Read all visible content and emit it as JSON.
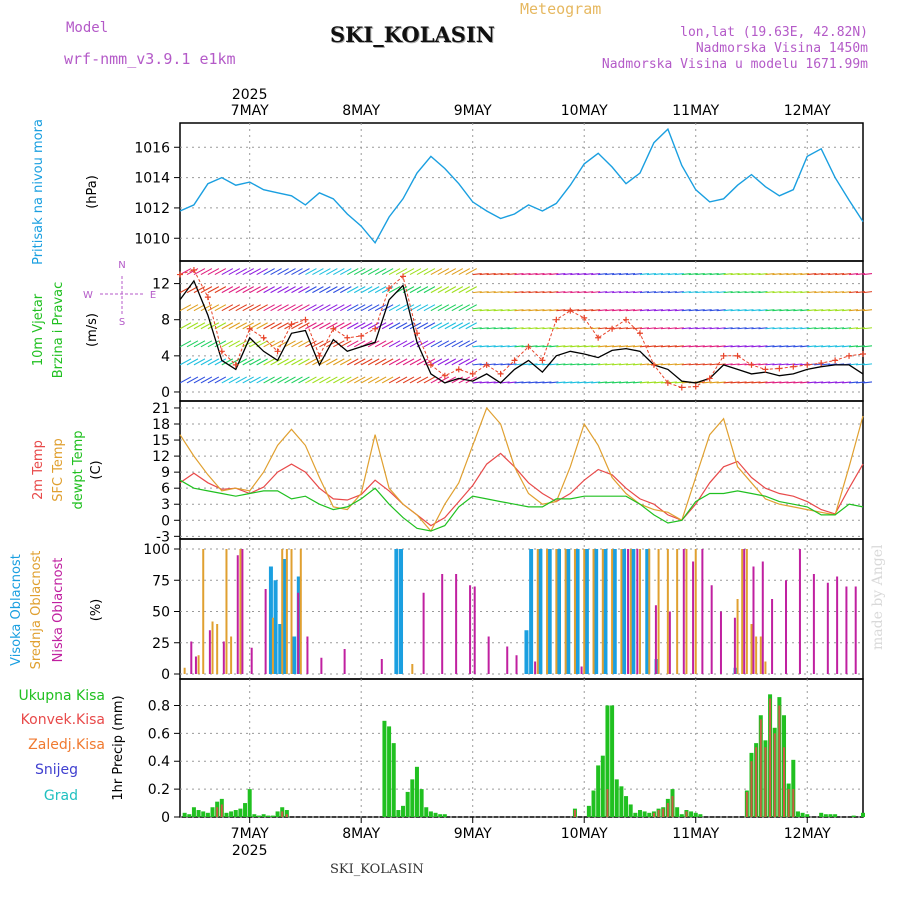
{
  "header": {
    "model_label": "Model",
    "model_name": "wrf-nmm_v3.9.1 e1km",
    "chart_kind": "Meteogram",
    "station": "SKI_KOLASIN",
    "coords": "lon,lat (19.63E, 42.82N)",
    "altitude": "Nadmorska Visina 1450m",
    "model_altitude": "Nadmorska Visina u modelu 1671.99m"
  },
  "footer": {
    "station": "SKI_KOLASIN",
    "signature": "made by Angel"
  },
  "time_axis": {
    "year": "2025",
    "day_labels": [
      "7MAY",
      "8MAY",
      "9MAY",
      "10MAY",
      "11MAY",
      "12MAY"
    ],
    "hours_start_offset": -15,
    "hours_end_offset": 132
  },
  "colors": {
    "pressure": "#1a9fe0",
    "wind_speed": "#000000",
    "wind_gust": "#e8442a",
    "temp_2m": "#e84a4a",
    "temp_sfc": "#e0a030",
    "dewpoint": "#20c020",
    "cloud_high": "#1a9fe0",
    "cloud_mid": "#e0a030",
    "cloud_low": "#c020a0",
    "precip_total": "#20c020",
    "precip_conv": "#e84a4a",
    "grid": "#9a9a9a"
  },
  "chart_data": [
    {
      "type": "line",
      "panel": "pressure",
      "ylabel": "Pritisak na nivou mora",
      "unit_label": "(hPa)",
      "ylim": [
        1008.5,
        1017.6
      ],
      "yticks": [
        1010,
        1012,
        1014,
        1016
      ],
      "x": [
        -15,
        -12,
        -9,
        -6,
        -3,
        0,
        3,
        6,
        9,
        12,
        15,
        18,
        21,
        24,
        27,
        30,
        33,
        36,
        39,
        42,
        45,
        48,
        51,
        54,
        57,
        60,
        63,
        66,
        69,
        72,
        75,
        78,
        81,
        84,
        87,
        90,
        93,
        96,
        99,
        102,
        105,
        108,
        111,
        114,
        117,
        120,
        123,
        126,
        129,
        132
      ],
      "series": [
        {
          "name": "Pritisak na nivou mora",
          "values": [
            1011.8,
            1012.2,
            1013.6,
            1014.0,
            1013.5,
            1013.7,
            1013.2,
            1013.0,
            1012.8,
            1012.2,
            1013.0,
            1012.6,
            1011.6,
            1010.8,
            1009.7,
            1011.4,
            1012.6,
            1014.3,
            1015.4,
            1014.6,
            1013.6,
            1012.4,
            1011.8,
            1011.3,
            1011.6,
            1012.2,
            1011.8,
            1012.3,
            1013.5,
            1014.9,
            1015.6,
            1014.7,
            1013.6,
            1014.3,
            1016.3,
            1017.2,
            1014.8,
            1013.2,
            1012.4,
            1012.6,
            1013.5,
            1014.2,
            1013.4,
            1012.8,
            1013.2,
            1015.4,
            1015.9,
            1014.0,
            1012.5,
            1011.1
          ]
        }
      ]
    },
    {
      "type": "line",
      "panel": "wind",
      "ylabel": "10m Vjetar Brzina i Pravac",
      "unit_label": "(m/s)",
      "compass": [
        "N",
        "E",
        "S",
        "W"
      ],
      "ylim": [
        -1,
        14.5
      ],
      "yticks": [
        0,
        4,
        8,
        12
      ],
      "x": [
        -15,
        -12,
        -9,
        -6,
        -3,
        0,
        3,
        6,
        9,
        12,
        15,
        18,
        21,
        24,
        27,
        30,
        33,
        36,
        39,
        42,
        45,
        48,
        51,
        54,
        57,
        60,
        63,
        66,
        69,
        72,
        75,
        78,
        81,
        84,
        87,
        90,
        93,
        96,
        99,
        102,
        105,
        108,
        111,
        114,
        117,
        120,
        123,
        126,
        129,
        132
      ],
      "series": [
        {
          "name": "speed",
          "values": [
            10.2,
            12.3,
            8.5,
            3.5,
            2.5,
            6.0,
            4.5,
            3.5,
            6.5,
            6.8,
            3.0,
            5.8,
            4.5,
            5.0,
            5.5,
            10.2,
            11.8,
            5.5,
            2.0,
            1.0,
            1.5,
            1.2,
            2.0,
            1.0,
            2.5,
            3.5,
            2.2,
            4.0,
            4.5,
            4.2,
            3.8,
            4.6,
            4.8,
            4.5,
            3.0,
            2.5,
            1.2,
            1.0,
            1.5,
            3.0,
            2.5,
            2.0,
            2.2,
            1.8,
            2.0,
            2.5,
            2.8,
            3.0,
            3.0,
            2.0
          ]
        },
        {
          "name": "gust",
          "values": [
            13.0,
            13.5,
            10.5,
            4.5,
            3.0,
            7.0,
            6.0,
            4.5,
            7.5,
            8.0,
            4.0,
            7.0,
            6.0,
            6.2,
            7.0,
            11.5,
            12.8,
            6.5,
            3.0,
            1.8,
            2.5,
            2.0,
            3.0,
            2.0,
            3.5,
            5.0,
            3.5,
            8.0,
            9.0,
            8.2,
            6.0,
            7.0,
            8.0,
            6.5,
            3.0,
            1.0,
            0.5,
            0.6,
            1.5,
            4.0,
            4.0,
            3.0,
            2.5,
            2.6,
            2.8,
            3.0,
            3.2,
            3.5,
            4.0,
            4.2
          ]
        }
      ]
    },
    {
      "type": "line",
      "panel": "temperature",
      "ylabels": [
        "2m Temp",
        "SFC Temp",
        "dewpt Temp"
      ],
      "unit_label": "(C)",
      "ylim": [
        -3.5,
        22.3
      ],
      "yticks": [
        -3,
        0,
        3,
        6,
        9,
        12,
        15,
        18,
        21
      ],
      "x": [
        -15,
        -12,
        -9,
        -6,
        -3,
        0,
        3,
        6,
        9,
        12,
        15,
        18,
        21,
        24,
        27,
        30,
        33,
        36,
        39,
        42,
        45,
        48,
        51,
        54,
        57,
        60,
        63,
        66,
        69,
        72,
        75,
        78,
        81,
        84,
        87,
        90,
        93,
        96,
        99,
        102,
        105,
        108,
        111,
        114,
        117,
        120,
        123,
        126,
        129,
        132
      ],
      "series": [
        {
          "name": "2m Temp",
          "values": [
            7.0,
            8.8,
            7.0,
            5.8,
            6.0,
            5.0,
            6.2,
            9.0,
            10.5,
            9.0,
            6.0,
            4.0,
            3.8,
            4.8,
            7.5,
            5.5,
            3.0,
            1.0,
            -1.0,
            0.5,
            3.5,
            6.5,
            10.5,
            12.5,
            10.0,
            7.0,
            5.0,
            3.5,
            5.0,
            7.5,
            9.5,
            8.5,
            6.0,
            4.0,
            3.0,
            1.0,
            0.0,
            3.0,
            7.0,
            10.0,
            11.0,
            8.0,
            6.0,
            5.0,
            4.5,
            3.5,
            2.0,
            1.2,
            6.0,
            10.5
          ]
        },
        {
          "name": "SFC Temp",
          "values": [
            16.0,
            12.0,
            8.5,
            5.5,
            6.0,
            5.5,
            9.0,
            14.0,
            17.0,
            14.0,
            8.0,
            2.5,
            2.0,
            5.0,
            16.0,
            6.0,
            3.0,
            1.0,
            -2.0,
            3.0,
            7.0,
            14.0,
            21.0,
            18.0,
            10.0,
            5.0,
            3.0,
            3.5,
            10.0,
            18.0,
            14.0,
            8.0,
            5.0,
            3.0,
            2.0,
            1.5,
            0.0,
            8.0,
            16.0,
            19.0,
            10.0,
            7.0,
            4.0,
            3.0,
            2.5,
            2.0,
            1.5,
            1.0,
            10.0,
            19.5
          ]
        },
        {
          "name": "dewpt Temp",
          "values": [
            7.5,
            6.0,
            5.5,
            5.0,
            4.5,
            5.0,
            5.5,
            5.5,
            4.0,
            4.5,
            3.0,
            2.0,
            2.5,
            4.0,
            6.0,
            3.0,
            0.5,
            -1.5,
            -2.0,
            -1.0,
            2.5,
            4.5,
            4.0,
            3.5,
            3.0,
            2.5,
            2.5,
            4.0,
            4.0,
            4.5,
            4.5,
            4.5,
            4.5,
            3.0,
            1.0,
            -0.5,
            0.0,
            3.5,
            5.0,
            5.0,
            5.5,
            5.0,
            4.5,
            3.5,
            3.0,
            2.5,
            1.0,
            1.0,
            3.0,
            2.5
          ]
        }
      ]
    },
    {
      "type": "bar",
      "panel": "cloud",
      "ylabels": [
        "Visoka Oblacnost",
        "Srednja Oblacnost",
        "Niska Oblacnost"
      ],
      "unit_label": "(%)",
      "ylim": [
        -4,
        108
      ],
      "yticks": [
        0,
        25,
        50,
        75,
        100
      ],
      "note": "hourly bars; values read from image, 0 where empty",
      "high": {
        "hours": [
          5,
          6,
          7,
          8,
          10,
          11,
          32,
          33,
          60,
          61,
          63,
          65,
          67,
          69,
          71,
          73,
          75,
          77,
          79,
          81,
          83,
          86,
          88,
          105
        ],
        "values": [
          86,
          75,
          40,
          92,
          30,
          78,
          100,
          100,
          35,
          100,
          100,
          100,
          100,
          100,
          100,
          100,
          100,
          100,
          100,
          100,
          100,
          100,
          12,
          5
        ]
      },
      "mid": {
        "hours": [
          -14,
          -11,
          -10,
          -8,
          -7,
          -5,
          -4,
          -2,
          5,
          7,
          8,
          9,
          11,
          35,
          62,
          64,
          66,
          68,
          70,
          72,
          74,
          76,
          78,
          80,
          82,
          84,
          86,
          88,
          90,
          92,
          94,
          96,
          105,
          106,
          107,
          108,
          109,
          110,
          111
        ],
        "values": [
          5,
          15,
          100,
          42,
          40,
          100,
          30,
          100,
          45,
          100,
          100,
          100,
          100,
          8,
          100,
          100,
          100,
          100,
          100,
          100,
          100,
          100,
          100,
          100,
          100,
          100,
          100,
          100,
          100,
          100,
          100,
          100,
          60,
          100,
          100,
          40,
          30,
          30,
          10
        ]
      },
      "low": {
        "hours": [
          -13,
          -12,
          -9,
          -6,
          -3,
          -2,
          0,
          3,
          10,
          12,
          15,
          20,
          28,
          37,
          41,
          44,
          47,
          48,
          51,
          55,
          57,
          61,
          71,
          81,
          83,
          87,
          90,
          93,
          95,
          97,
          99,
          101,
          104,
          106,
          108,
          110,
          112,
          115,
          118,
          121,
          124,
          126,
          128,
          130
        ],
        "values": [
          26,
          14,
          35,
          26,
          95,
          100,
          21,
          68,
          65,
          30,
          13,
          20,
          12,
          65,
          80,
          80,
          71,
          70,
          30,
          22,
          15,
          10,
          6,
          100,
          100,
          55,
          50,
          100,
          90,
          100,
          71,
          50,
          45,
          100,
          86,
          90,
          60,
          75,
          100,
          80,
          73,
          78,
          70,
          70
        ]
      }
    },
    {
      "type": "bar",
      "panel": "precip",
      "ylabel": "1hr Precip",
      "unit_label": "(mm)",
      "legend": [
        "Ukupna Kisa",
        "Konvek.Kisa",
        "Zaledj.Kisa",
        "Snijeg",
        "Grad"
      ],
      "ylim": [
        0,
        0.99
      ],
      "yticks": [
        0,
        0.2,
        0.4,
        0.6,
        0.8
      ],
      "hours": [
        -14,
        -13,
        -12,
        -11,
        -10,
        -9,
        -8,
        -7,
        -6,
        -5,
        -4,
        -3,
        -2,
        -1,
        0,
        1,
        2,
        3,
        4,
        5,
        6,
        7,
        8,
        9,
        10,
        11,
        12,
        13,
        14,
        15,
        16,
        17,
        18,
        19,
        20,
        21,
        22,
        23,
        24,
        25,
        26,
        27,
        28,
        29,
        30,
        31,
        32,
        33,
        34,
        35,
        36,
        37,
        38,
        39,
        40,
        41,
        42,
        43,
        44,
        45,
        46,
        47,
        48,
        49,
        50,
        51,
        52,
        53,
        54,
        55,
        56,
        57,
        58,
        59,
        60,
        61,
        62,
        63,
        64,
        65,
        66,
        67,
        68,
        69,
        70,
        71,
        72,
        73,
        74,
        75,
        76,
        77,
        78,
        79,
        80,
        81,
        82,
        83,
        84,
        85,
        86,
        87,
        88,
        89,
        90,
        91,
        92,
        93,
        94,
        95,
        96,
        97,
        98,
        99,
        100,
        101,
        102,
        103,
        104,
        105,
        106,
        107,
        108,
        109,
        110,
        111,
        112,
        113,
        114,
        115,
        116,
        117,
        118,
        119,
        120,
        121,
        122,
        123,
        124,
        125,
        126,
        127,
        128,
        129,
        130,
        131,
        132
      ],
      "total": [
        0.03,
        0.02,
        0.07,
        0.05,
        0.04,
        0.03,
        0.07,
        0.11,
        0.13,
        0.03,
        0.04,
        0.05,
        0.06,
        0.1,
        0.2,
        0.02,
        0.01,
        0.02,
        0.01,
        0.01,
        0.04,
        0.07,
        0.05,
        0.0,
        0.0,
        0.0,
        0.0,
        0.0,
        0.0,
        0.0,
        0.0,
        0.0,
        0.0,
        0.0,
        0.0,
        0.0,
        0.0,
        0.0,
        0.0,
        0.0,
        0.0,
        0.0,
        0.0,
        0.69,
        0.65,
        0.53,
        0.05,
        0.08,
        0.18,
        0.27,
        0.36,
        0.2,
        0.07,
        0.04,
        0.03,
        0.02,
        0.02,
        0.0,
        0.0,
        0.0,
        0.0,
        0.0,
        0.0,
        0.0,
        0.0,
        0.0,
        0.0,
        0.0,
        0.0,
        0.0,
        0.0,
        0.0,
        0.0,
        0.0,
        0.0,
        0.0,
        0.0,
        0.0,
        0.0,
        0.0,
        0.0,
        0.0,
        0.0,
        0.0,
        0.06,
        0.0,
        0.0,
        0.08,
        0.19,
        0.37,
        0.44,
        0.8,
        0.8,
        0.27,
        0.22,
        0.15,
        0.09,
        0.03,
        0.05,
        0.04,
        0.03,
        0.04,
        0.06,
        0.07,
        0.13,
        0.2,
        0.07,
        0.02,
        0.05,
        0.04,
        0.03,
        0.02,
        0.0,
        0.0,
        0.0,
        0.0,
        0.0,
        0.0,
        0.0,
        0.0,
        0.0,
        0.19,
        0.46,
        0.53,
        0.73,
        0.55,
        0.88,
        0.64,
        0.86,
        0.73,
        0.24,
        0.41,
        0.04,
        0.03,
        0.02,
        0.0,
        0.0,
        0.03,
        0.02,
        0.02,
        0.02,
        0.0,
        0.0,
        0.0,
        0.01,
        0.0,
        0.03,
        0.02,
        0.01
      ],
      "conv": [
        0.0,
        0.0,
        0.0,
        0.0,
        0.0,
        0.0,
        0.0,
        0.07,
        0.09,
        0.0,
        0.0,
        0.0,
        0.0,
        0.0,
        0.0,
        0.0,
        0.0,
        0.0,
        0.0,
        0.0,
        0.0,
        0.04,
        0.02,
        0.0,
        0.0,
        0.0,
        0.0,
        0.0,
        0.0,
        0.0,
        0.0,
        0.0,
        0.0,
        0.0,
        0.0,
        0.0,
        0.0,
        0.0,
        0.0,
        0.0,
        0.0,
        0.0,
        0.0,
        0.0,
        0.0,
        0.0,
        0.0,
        0.0,
        0.0,
        0.0,
        0.0,
        0.0,
        0.0,
        0.0,
        0.0,
        0.0,
        0.0,
        0.0,
        0.0,
        0.0,
        0.0,
        0.0,
        0.0,
        0.0,
        0.0,
        0.0,
        0.0,
        0.0,
        0.0,
        0.0,
        0.0,
        0.0,
        0.0,
        0.0,
        0.0,
        0.0,
        0.0,
        0.0,
        0.0,
        0.0,
        0.0,
        0.0,
        0.0,
        0.0,
        0.05,
        0.0,
        0.0,
        0.0,
        0.0,
        0.0,
        0.0,
        0.2,
        0.0,
        0.0,
        0.0,
        0.0,
        0.0,
        0.0,
        0.0,
        0.0,
        0.0,
        0.03,
        0.05,
        0.06,
        0.1,
        0.15,
        0.0,
        0.0,
        0.04,
        0.0,
        0.0,
        0.0,
        0.0,
        0.0,
        0.0,
        0.0,
        0.0,
        0.0,
        0.0,
        0.0,
        0.0,
        0.18,
        0.4,
        0.5,
        0.7,
        0.5,
        0.85,
        0.6,
        0.8,
        0.5,
        0.2,
        0.2,
        0.0,
        0.0,
        0.0,
        0.0,
        0.0,
        0.0,
        0.0,
        0.0,
        0.0,
        0.0,
        0.0,
        0.0,
        0.0,
        0.0,
        0.0,
        0.0,
        0.0
      ]
    }
  ]
}
